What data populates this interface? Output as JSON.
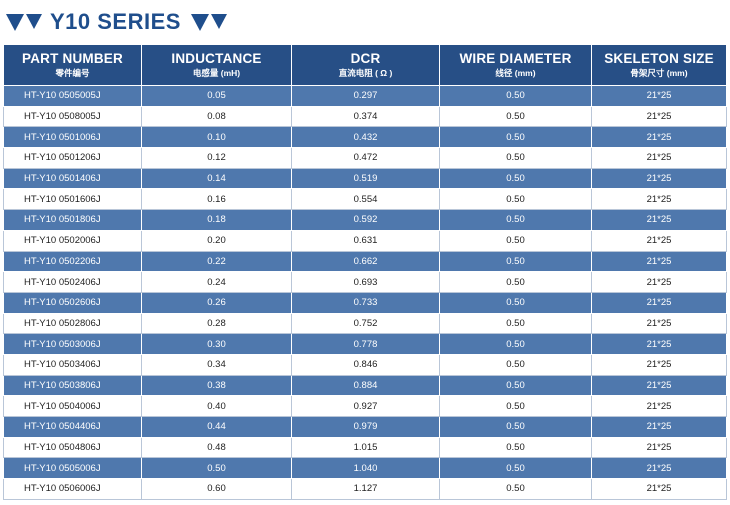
{
  "title": "Y10 SERIES",
  "icons": {
    "left": "double-triangle-icon",
    "right": "double-triangle-icon"
  },
  "colors": {
    "header_bg": "#274f86",
    "row_highlight": "#4f78ad",
    "title": "#1f4e8c"
  },
  "columns": [
    {
      "en": "PART NUMBER",
      "zh": "零件编号"
    },
    {
      "en": "INDUCTANCE",
      "zh": "电感量 (mH)"
    },
    {
      "en": "DCR",
      "zh": "直流电阻 ( Ω )"
    },
    {
      "en": "WIRE DIAMETER",
      "zh": "线径 (mm)"
    },
    {
      "en": "SKELETON SIZE",
      "zh": "骨架尺寸 (mm)"
    }
  ],
  "rows": [
    [
      "HT-Y10 0505005J",
      "0.05",
      "0.297",
      "0.50",
      "21*25"
    ],
    [
      "HT-Y10 0508005J",
      "0.08",
      "0.374",
      "0.50",
      "21*25"
    ],
    [
      "HT-Y10 0501006J",
      "0.10",
      "0.432",
      "0.50",
      "21*25"
    ],
    [
      "HT-Y10 0501206J",
      "0.12",
      "0.472",
      "0.50",
      "21*25"
    ],
    [
      "HT-Y10 0501406J",
      "0.14",
      "0.519",
      "0.50",
      "21*25"
    ],
    [
      "HT-Y10 0501606J",
      "0.16",
      "0.554",
      "0.50",
      "21*25"
    ],
    [
      "HT-Y10 0501806J",
      "0.18",
      "0.592",
      "0.50",
      "21*25"
    ],
    [
      "HT-Y10 0502006J",
      "0.20",
      "0.631",
      "0.50",
      "21*25"
    ],
    [
      "HT-Y10 0502206J",
      "0.22",
      "0.662",
      "0.50",
      "21*25"
    ],
    [
      "HT-Y10 0502406J",
      "0.24",
      "0.693",
      "0.50",
      "21*25"
    ],
    [
      "HT-Y10 0502606J",
      "0.26",
      "0.733",
      "0.50",
      "21*25"
    ],
    [
      "HT-Y10 0502806J",
      "0.28",
      "0.752",
      "0.50",
      "21*25"
    ],
    [
      "HT-Y10 0503006J",
      "0.30",
      "0.778",
      "0.50",
      "21*25"
    ],
    [
      "HT-Y10 0503406J",
      "0.34",
      "0.846",
      "0.50",
      "21*25"
    ],
    [
      "HT-Y10 0503806J",
      "0.38",
      "0.884",
      "0.50",
      "21*25"
    ],
    [
      "HT-Y10 0504006J",
      "0.40",
      "0.927",
      "0.50",
      "21*25"
    ],
    [
      "HT-Y10 0504406J",
      "0.44",
      "0.979",
      "0.50",
      "21*25"
    ],
    [
      "HT-Y10 0504806J",
      "0.48",
      "1.015",
      "0.50",
      "21*25"
    ],
    [
      "HT-Y10 0505006J",
      "0.50",
      "1.040",
      "0.50",
      "21*25"
    ],
    [
      "HT-Y10 0506006J",
      "0.60",
      "1.127",
      "0.50",
      "21*25"
    ]
  ]
}
